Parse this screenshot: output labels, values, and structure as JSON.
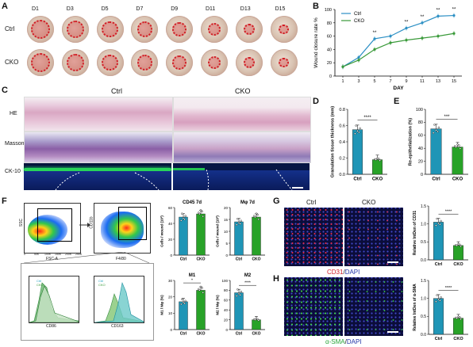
{
  "figure": {
    "panels": {
      "A": {
        "letter": "A",
        "days": [
          "D1",
          "D3",
          "D5",
          "D7",
          "D9",
          "D11",
          "D13",
          "D15"
        ],
        "rows": [
          "Ctrl",
          "CKO"
        ]
      },
      "B": {
        "letter": "B"
      },
      "C": {
        "letter": "C",
        "columns": [
          "Ctrl",
          "CKO"
        ],
        "rows": [
          "HE",
          "Masson",
          "CK-10"
        ]
      },
      "D": {
        "letter": "D"
      },
      "E": {
        "letter": "E"
      },
      "F": {
        "letter": "F",
        "flow": {
          "plot1": {
            "y": "SSC",
            "x": "FSC-A"
          },
          "plot2": {
            "y": "CD11b",
            "x": "F4/80"
          },
          "hist1": {
            "x": "CD86",
            "legend": [
              "Ctrl",
              "CKO"
            ]
          },
          "hist2": {
            "x": "CD163",
            "legend": [
              "Ctrl",
              "CKO"
            ]
          },
          "ticks_fsc": [
            "0",
            "50K",
            "100K",
            "150K",
            "200K",
            "250K"
          ]
        }
      },
      "G": {
        "letter": "G",
        "columns": [
          "Ctrl",
          "CKO"
        ],
        "stain_red": "CD31",
        "stain_sep": "/",
        "stain_blue": "DAPI"
      },
      "H": {
        "letter": "H",
        "stain_green": "α-SMA",
        "stain_sep": "/",
        "stain_blue": "DAPI"
      }
    }
  },
  "chart_data": [
    {
      "id": "B",
      "type": "line",
      "title": "",
      "xlabel": "DAY",
      "ylabel": "Wound closure rate %",
      "x": [
        1,
        3,
        5,
        7,
        9,
        11,
        13,
        15
      ],
      "xlim": [
        0,
        16
      ],
      "ylim": [
        0,
        100
      ],
      "yticks": [
        0,
        20,
        40,
        60,
        80,
        100
      ],
      "series": [
        {
          "name": "Ctrl",
          "color": "#2b8fc4",
          "values": [
            14,
            28,
            56,
            60,
            72,
            80,
            90,
            91
          ]
        },
        {
          "name": "CKO",
          "color": "#3a9a3a",
          "values": [
            14,
            24,
            40,
            50,
            54,
            57,
            60,
            64
          ]
        }
      ],
      "significance": [
        "",
        "",
        "**",
        "",
        "**",
        "**",
        "**",
        "**"
      ],
      "legend": "top-left"
    },
    {
      "id": "D",
      "type": "bar",
      "ylabel": "Granulation tissue thickness (mm)",
      "categories": [
        "Ctrl",
        "CKO"
      ],
      "values": [
        0.55,
        0.18
      ],
      "ylim": [
        0,
        0.8
      ],
      "yticks": [
        "0.0",
        "0.2",
        "0.4",
        "0.6",
        "0.8"
      ],
      "colors": [
        "#1f95b6",
        "#28a228"
      ],
      "significance": "****"
    },
    {
      "id": "E",
      "type": "bar",
      "ylabel": "Re-epithelialization (%)",
      "categories": [
        "Ctrl",
        "CKO"
      ],
      "values": [
        70,
        42
      ],
      "ylim": [
        0,
        100
      ],
      "yticks": [
        "0",
        "20",
        "40",
        "60",
        "80",
        "100"
      ],
      "colors": [
        "#1f95b6",
        "#28a228"
      ],
      "significance": "***"
    },
    {
      "id": "F-CD45",
      "type": "bar",
      "title": "CD45 7d",
      "ylabel": "Cells / wound (10³)",
      "categories": [
        "Ctrl",
        "CKO"
      ],
      "values": [
        48,
        52
      ],
      "ylim": [
        0,
        60
      ],
      "yticks": [
        "0",
        "20",
        "40",
        "60"
      ],
      "colors": [
        "#1f95b6",
        "#28a228"
      ]
    },
    {
      "id": "F-Mphi",
      "type": "bar",
      "title": "Mφ 7d",
      "ylabel": "Cells / wound (10³)",
      "categories": [
        "Ctrl",
        "CKO"
      ],
      "values": [
        14,
        16
      ],
      "ylim": [
        0,
        20
      ],
      "yticks": [
        "0",
        "5",
        "10",
        "15",
        "20"
      ],
      "colors": [
        "#1f95b6",
        "#28a228"
      ]
    },
    {
      "id": "F-M1",
      "type": "bar",
      "title": "M1",
      "ylabel": "M1 / Mφ (%)",
      "categories": [
        "Ctrl",
        "CKO"
      ],
      "values": [
        17,
        24
      ],
      "ylim": [
        0,
        30
      ],
      "yticks": [
        "0",
        "10",
        "20",
        "30"
      ],
      "colors": [
        "#1f95b6",
        "#28a228"
      ],
      "significance": "*"
    },
    {
      "id": "F-M2",
      "type": "bar",
      "title": "M2",
      "ylabel": "M2 / Mφ (%)",
      "categories": [
        "Ctrl",
        "CKO"
      ],
      "values": [
        75,
        20
      ],
      "ylim": [
        0,
        100
      ],
      "yticks": [
        "0",
        "20",
        "40",
        "60",
        "80",
        "100"
      ],
      "colors": [
        "#1f95b6",
        "#28a228"
      ],
      "significance": "****"
    },
    {
      "id": "G",
      "type": "bar",
      "ylabel": "Relative IntDen of CD31",
      "categories": [
        "Ctrl",
        "CKO"
      ],
      "values": [
        1.05,
        0.4
      ],
      "ylim": [
        0,
        1.5
      ],
      "yticks": [
        "0.0",
        "0.5",
        "1.0",
        "1.5"
      ],
      "colors": [
        "#1f95b6",
        "#28a228"
      ],
      "significance": "****"
    },
    {
      "id": "H",
      "type": "bar",
      "ylabel": "Relative IntDen of α-SMA",
      "categories": [
        "Ctrl",
        "CKO"
      ],
      "values": [
        1.0,
        0.45
      ],
      "ylim": [
        0,
        1.5
      ],
      "yticks": [
        "0.0",
        "0.5",
        "1.0",
        "1.5"
      ],
      "colors": [
        "#1f95b6",
        "#28a228"
      ],
      "significance": "****"
    }
  ]
}
